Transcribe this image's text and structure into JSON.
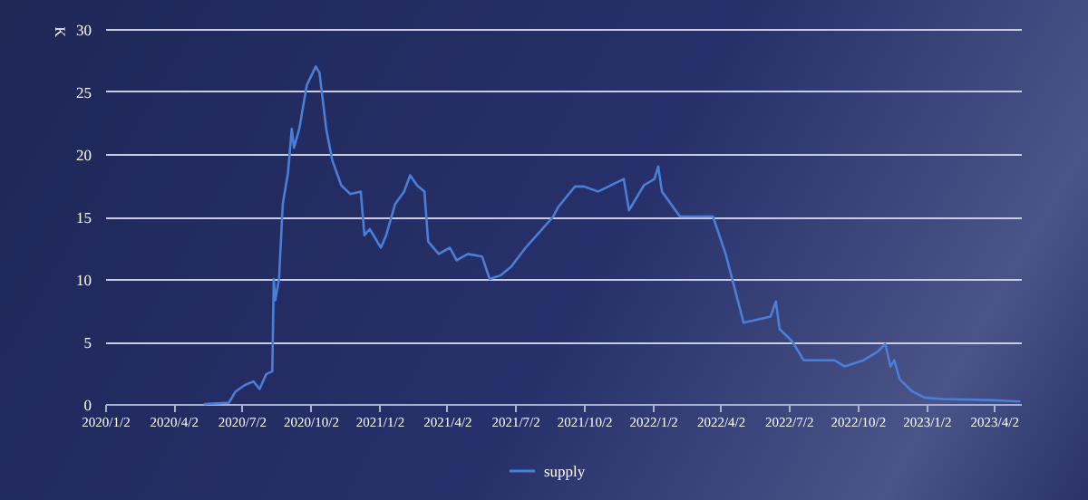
{
  "chart_data": {
    "type": "line",
    "ylabel": "K",
    "legend": "bottom",
    "grid": "y",
    "marker": "none",
    "line_style": "solid",
    "xlim": [
      "2020-01-02",
      "2023-05-08"
    ],
    "xticks": [
      {
        "value": "2020-01-02",
        "label": "2020/1/2"
      },
      {
        "value": "2020-04-02",
        "label": "2020/4/2"
      },
      {
        "value": "2020-07-02",
        "label": "2020/7/2"
      },
      {
        "value": "2020-10-02",
        "label": "2020/10/2"
      },
      {
        "value": "2021-01-02",
        "label": "2021/1/2"
      },
      {
        "value": "2021-04-02",
        "label": "2021/4/2"
      },
      {
        "value": "2021-07-02",
        "label": "2021/7/2"
      },
      {
        "value": "2021-10-02",
        "label": "2021/10/2"
      },
      {
        "value": "2022-01-02",
        "label": "2022/1/2"
      },
      {
        "value": "2022-04-02",
        "label": "2022/4/2"
      },
      {
        "value": "2022-07-02",
        "label": "2022/7/2"
      },
      {
        "value": "2022-10-02",
        "label": "2022/10/2"
      },
      {
        "value": "2023-01-02",
        "label": "2023/1/2"
      },
      {
        "value": "2023-04-02",
        "label": "2023/4/2"
      }
    ],
    "ylim": [
      0,
      30
    ],
    "yticks": [
      0,
      5,
      10,
      15,
      20,
      25,
      30
    ],
    "x": [
      "2020-05-14",
      "2020-06-15",
      "2020-06-24",
      "2020-07-06",
      "2020-07-18",
      "2020-07-26",
      "2020-08-04",
      "2020-08-12",
      "2020-08-14",
      "2020-08-16",
      "2020-08-21",
      "2020-08-26",
      "2020-09-02",
      "2020-09-07",
      "2020-09-10",
      "2020-09-17",
      "2020-09-27",
      "2020-10-09",
      "2020-10-14",
      "2020-10-23",
      "2020-10-31",
      "2020-11-12",
      "2020-11-24",
      "2020-12-08",
      "2020-12-13",
      "2020-12-20",
      "2021-01-04",
      "2021-01-11",
      "2021-01-23",
      "2021-02-04",
      "2021-02-12",
      "2021-02-21",
      "2021-03-03",
      "2021-03-08",
      "2021-03-22",
      "2021-04-06",
      "2021-04-15",
      "2021-04-30",
      "2021-05-19",
      "2021-05-29",
      "2021-06-13",
      "2021-06-27",
      "2021-07-16",
      "2021-07-31",
      "2021-08-22",
      "2021-08-29",
      "2021-09-20",
      "2021-10-02",
      "2021-10-21",
      "2021-11-24",
      "2021-12-01",
      "2021-12-21",
      "2022-01-04",
      "2022-01-09",
      "2022-01-14",
      "2022-02-07",
      "2022-03-23",
      "2022-04-09",
      "2022-05-03",
      "2022-06-08",
      "2022-06-15",
      "2022-06-20",
      "2022-07-07",
      "2022-07-22",
      "2022-09-01",
      "2022-09-15",
      "2022-10-10",
      "2022-10-29",
      "2022-11-08",
      "2022-11-15",
      "2022-11-20",
      "2022-11-27",
      "2022-12-14",
      "2022-12-31",
      "2023-01-24",
      "2023-04-02",
      "2023-05-06"
    ],
    "series": [
      {
        "name": "supply",
        "color": "#4a7fd8",
        "values": [
          0,
          0.1,
          1,
          1.5,
          1.8,
          1.2,
          2.4,
          2.6,
          10,
          8.3,
          10,
          16,
          18.5,
          22,
          20.5,
          22,
          25.5,
          27,
          26.5,
          22,
          19.5,
          17.5,
          16.8,
          17,
          13.5,
          14,
          12.5,
          13.5,
          16,
          17,
          18.3,
          17.5,
          17,
          13,
          12,
          12.5,
          11.5,
          12,
          11.8,
          10,
          10.3,
          11,
          12.5,
          13.5,
          15,
          15.8,
          17.4,
          17.4,
          17,
          18,
          15.5,
          17.5,
          18,
          19,
          17,
          15,
          15,
          12,
          6.5,
          7,
          8.2,
          6,
          5,
          3.5,
          3.5,
          3,
          3.5,
          4.2,
          4.8,
          3,
          3.5,
          2,
          1,
          0.5,
          0.4,
          0.3,
          0.2
        ]
      }
    ]
  }
}
